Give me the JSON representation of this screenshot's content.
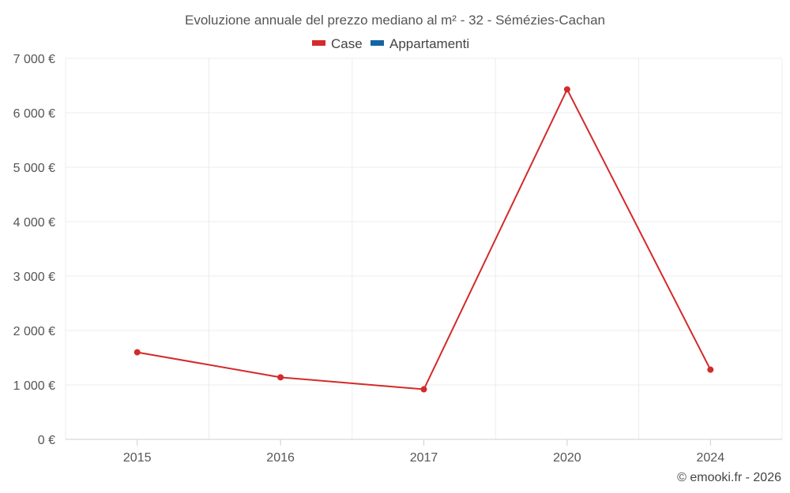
{
  "chart_data": {
    "type": "line",
    "title": "Evoluzione annuale del prezzo mediano al m² - 32 - Sémézies-Cachan",
    "categories": [
      "2015",
      "2016",
      "2017",
      "2020",
      "2024"
    ],
    "series": [
      {
        "name": "Case",
        "color": "#d32a2a",
        "values": [
          1600,
          1140,
          920,
          6430,
          1280
        ]
      },
      {
        "name": "Appartamenti",
        "color": "#1366a3",
        "values": [
          null,
          null,
          null,
          null,
          null
        ]
      }
    ],
    "ylim": [
      0,
      7000
    ],
    "yticks": [
      0,
      1000,
      2000,
      3000,
      4000,
      5000,
      6000,
      7000
    ],
    "ytick_labels": [
      "0 €",
      "1 000 €",
      "2 000 €",
      "3 000 €",
      "4 000 €",
      "5 000 €",
      "6 000 €",
      "7 000 €"
    ],
    "grid": true,
    "legend_position": "top-center"
  },
  "credit": "© emooki.fr - 2026"
}
